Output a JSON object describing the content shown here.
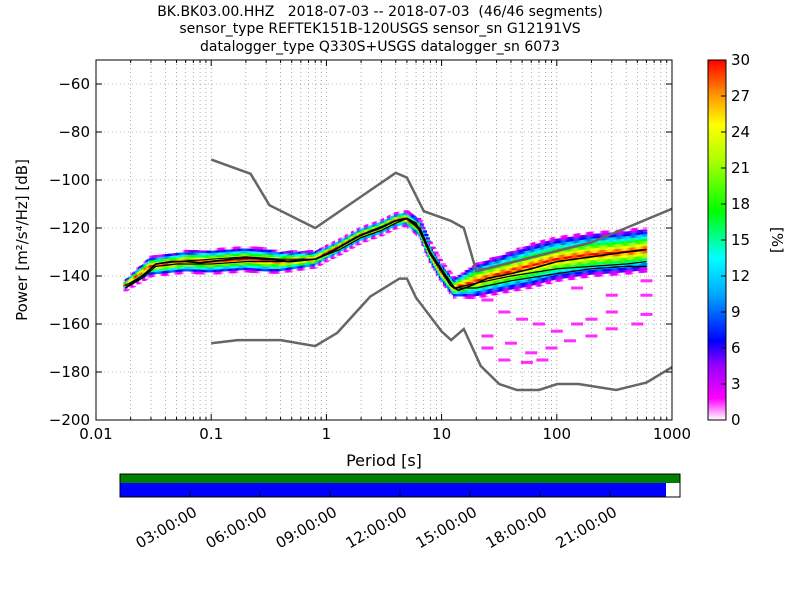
{
  "title_lines": [
    "BK.BK03.00.HHZ   2018-07-03 -- 2018-07-03  (46/46 segments)",
    "sensor_type REFTEK151B-120USGS sensor_sn G12191VS",
    "datalogger_type Q330S+USGS datalogger_sn 6073"
  ],
  "chart_data": {
    "type": "heatmap",
    "xlabel": "Period [s]",
    "ylabel": "Power [m²/s⁴/Hz] [dB]",
    "xscale": "log",
    "xlim": [
      0.01,
      1000
    ],
    "ylim": [
      -200,
      -50
    ],
    "xticks": [
      0.01,
      0.1,
      1,
      10,
      100,
      1000
    ],
    "xtick_labels": [
      "0.01",
      "0.1",
      "1",
      "10",
      "100",
      "1000"
    ],
    "yticks": [
      -200,
      -180,
      -160,
      -140,
      -120,
      -100,
      -80,
      -60
    ],
    "ytick_labels": [
      "−200",
      "−180",
      "−160",
      "−140",
      "−120",
      "−100",
      "−80",
      "−60"
    ],
    "grid": true,
    "colorbar": {
      "label": "[%]",
      "range": [
        0,
        30
      ],
      "ticks": [
        0,
        3,
        6,
        9,
        12,
        15,
        18,
        21,
        24,
        27,
        30
      ],
      "colormap": "pqlx"
    },
    "noise_models": {
      "new_high_noise_model": [
        [
          0.1,
          -91.5
        ],
        [
          0.22,
          -97.4
        ],
        [
          0.32,
          -110.5
        ],
        [
          0.8,
          -120
        ],
        [
          4,
          -97
        ],
        [
          5,
          -99
        ],
        [
          7,
          -113
        ],
        [
          12,
          -117
        ],
        [
          15.6,
          -120
        ],
        [
          20,
          -138
        ],
        [
          200,
          -126
        ],
        [
          1000,
          -112
        ]
      ],
      "new_low_noise_model": [
        [
          0.1,
          -168
        ],
        [
          0.17,
          -166.7
        ],
        [
          0.4,
          -166.7
        ],
        [
          0.8,
          -169.2
        ],
        [
          1.24,
          -163.7
        ],
        [
          2.4,
          -148.6
        ],
        [
          4.3,
          -141.1
        ],
        [
          5,
          -141.1
        ],
        [
          6,
          -149
        ],
        [
          10,
          -163.1
        ],
        [
          12.1,
          -166.7
        ],
        [
          15.6,
          -162.1
        ],
        [
          21.9,
          -177.5
        ],
        [
          31.6,
          -185
        ],
        [
          45,
          -187.5
        ],
        [
          70,
          -187.5
        ],
        [
          101,
          -185
        ],
        [
          154,
          -185
        ],
        [
          328,
          -187.5
        ],
        [
          600,
          -184.4
        ],
        [
          1000,
          -178
        ]
      ]
    },
    "mean_psd": [
      [
        0.018,
        -145
      ],
      [
        0.022,
        -142
      ],
      [
        0.027,
        -139
      ],
      [
        0.033,
        -135
      ],
      [
        0.045,
        -134
      ],
      [
        0.06,
        -134
      ],
      [
        0.08,
        -134.5
      ],
      [
        0.1,
        -134
      ],
      [
        0.15,
        -133
      ],
      [
        0.2,
        -132.5
      ],
      [
        0.3,
        -133
      ],
      [
        0.5,
        -134
      ],
      [
        0.8,
        -133
      ],
      [
        1,
        -131
      ],
      [
        1.3,
        -128
      ],
      [
        1.8,
        -124
      ],
      [
        2.5,
        -121
      ],
      [
        3.2,
        -119
      ],
      [
        4,
        -117
      ],
      [
        5,
        -116
      ],
      [
        6,
        -118
      ],
      [
        7,
        -125
      ],
      [
        8,
        -131
      ],
      [
        10,
        -138
      ],
      [
        12,
        -144
      ],
      [
        14,
        -146
      ],
      [
        18,
        -144
      ],
      [
        25,
        -141
      ],
      [
        40,
        -139
      ],
      [
        60,
        -137
      ],
      [
        100,
        -134
      ],
      [
        200,
        -132
      ],
      [
        400,
        -130
      ],
      [
        600,
        -129
      ]
    ],
    "median_psd": [
      [
        0.018,
        -144
      ],
      [
        0.025,
        -140
      ],
      [
        0.033,
        -135
      ],
      [
        0.05,
        -134
      ],
      [
        0.1,
        -133
      ],
      [
        0.2,
        -132
      ],
      [
        0.4,
        -133
      ],
      [
        0.8,
        -133
      ],
      [
        1.3,
        -128
      ],
      [
        2,
        -123
      ],
      [
        3,
        -120
      ],
      [
        4,
        -117
      ],
      [
        5,
        -116
      ],
      [
        6.5,
        -121
      ],
      [
        8,
        -131
      ],
      [
        10,
        -138
      ],
      [
        13,
        -145
      ],
      [
        20,
        -143
      ],
      [
        40,
        -140
      ],
      [
        100,
        -137
      ],
      [
        200,
        -136
      ],
      [
        400,
        -135
      ],
      [
        600,
        -134
      ]
    ],
    "mode_psd": [
      [
        0.018,
        -145
      ],
      [
        0.025,
        -141
      ],
      [
        0.033,
        -136
      ],
      [
        0.05,
        -135
      ],
      [
        0.1,
        -135
      ],
      [
        0.2,
        -134
      ],
      [
        0.4,
        -134
      ],
      [
        0.8,
        -133
      ],
      [
        1.3,
        -129
      ],
      [
        2,
        -124
      ],
      [
        3,
        -121
      ],
      [
        4,
        -118
      ],
      [
        5,
        -116
      ],
      [
        6.5,
        -120
      ],
      [
        8,
        -130
      ],
      [
        10,
        -137
      ],
      [
        13,
        -145
      ],
      [
        20,
        -145
      ],
      [
        40,
        -142
      ],
      [
        100,
        -139
      ],
      [
        200,
        -137
      ],
      [
        400,
        -136
      ],
      [
        600,
        -136
      ]
    ],
    "psd_density": {
      "band_center": [
        [
          0.018,
          -144
        ],
        [
          0.03,
          -136
        ],
        [
          0.06,
          -134
        ],
        [
          0.1,
          -134
        ],
        [
          0.2,
          -133
        ],
        [
          0.4,
          -134
        ],
        [
          0.8,
          -133
        ],
        [
          1.3,
          -128
        ],
        [
          2,
          -123
        ],
        [
          3,
          -120
        ],
        [
          4,
          -117
        ],
        [
          5,
          -116
        ],
        [
          6.5,
          -120
        ],
        [
          8,
          -130
        ],
        [
          10,
          -138
        ],
        [
          13,
          -145
        ],
        [
          20,
          -142
        ],
        [
          40,
          -138
        ],
        [
          100,
          -133
        ],
        [
          200,
          -131
        ],
        [
          400,
          -130
        ],
        [
          600,
          -129
        ]
      ],
      "band_halfwidth_db": [
        [
          0.018,
          2
        ],
        [
          0.03,
          4
        ],
        [
          0.1,
          5
        ],
        [
          0.3,
          5
        ],
        [
          1,
          3
        ],
        [
          3,
          3
        ],
        [
          5,
          3
        ],
        [
          8,
          4
        ],
        [
          13,
          4
        ],
        [
          20,
          7
        ],
        [
          60,
          9
        ],
        [
          200,
          9
        ],
        [
          600,
          9
        ]
      ],
      "outliers": [
        [
          25,
          -150
        ],
        [
          35,
          -155
        ],
        [
          50,
          -158
        ],
        [
          70,
          -160
        ],
        [
          100,
          -163
        ],
        [
          150,
          -160
        ],
        [
          200,
          -158
        ],
        [
          300,
          -155
        ],
        [
          25,
          -165
        ],
        [
          40,
          -168
        ],
        [
          60,
          -172
        ],
        [
          90,
          -170
        ],
        [
          130,
          -167
        ],
        [
          200,
          -165
        ],
        [
          300,
          -162
        ],
        [
          500,
          -160
        ],
        [
          600,
          -142
        ],
        [
          600,
          -148
        ],
        [
          600,
          -156
        ],
        [
          300,
          -148
        ],
        [
          150,
          -145
        ],
        [
          25,
          -170
        ],
        [
          35,
          -175
        ],
        [
          55,
          -176
        ],
        [
          75,
          -175
        ]
      ]
    }
  },
  "timeline": {
    "labels": [
      "03:00:00",
      "06:00:00",
      "09:00:00",
      "12:00:00",
      "15:00:00",
      "18:00:00",
      "21:00:00"
    ],
    "hours": [
      3,
      6,
      9,
      12,
      15,
      18,
      21
    ],
    "range_hours": [
      0,
      24
    ],
    "available_end_hour": 23.4,
    "colors": {
      "gap_top": "#008000",
      "data": "#0000ff"
    }
  }
}
